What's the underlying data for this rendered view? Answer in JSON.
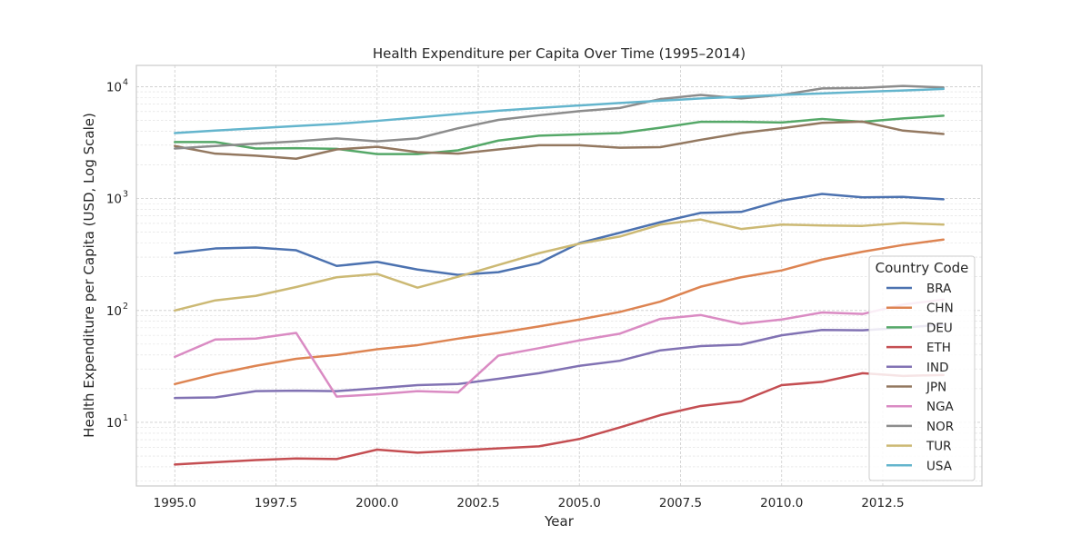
{
  "chart_data": {
    "type": "line",
    "title": "Health Expenditure per Capita Over Time (1995–2014)",
    "xlabel": "Year",
    "ylabel": "Health Expenditure per Capita (USD, Log Scale)",
    "x_scale": "linear",
    "y_scale": "log",
    "xlim": [
      1994.05,
      2014.95
    ],
    "ylim": [
      2.7,
      15500
    ],
    "x_ticks": [
      1995.0,
      1997.5,
      2000.0,
      2002.5,
      2005.0,
      2007.5,
      2010.0,
      2012.5
    ],
    "x_tick_labels": [
      "1995.0",
      "1997.5",
      "2000.0",
      "2002.5",
      "2005.0",
      "2007.5",
      "2010.0",
      "2012.5"
    ],
    "y_ticks": [
      10,
      100,
      1000,
      10000
    ],
    "y_tick_labels": [
      {
        "base": "10",
        "exp": "1"
      },
      {
        "base": "10",
        "exp": "2"
      },
      {
        "base": "10",
        "exp": "3"
      },
      {
        "base": "10",
        "exp": "4"
      }
    ],
    "grid": true,
    "legend": {
      "title": "Country Code",
      "position": "right"
    },
    "x": [
      1995,
      1996,
      1997,
      1998,
      1999,
      2000,
      2001,
      2002,
      2003,
      2004,
      2005,
      2006,
      2007,
      2008,
      2009,
      2010,
      2011,
      2012,
      2013,
      2014
    ],
    "series": [
      {
        "name": "BRA",
        "color": "#4c72b0",
        "values": [
          325,
          358,
          365,
          345,
          250,
          272,
          232,
          208,
          220,
          265,
          400,
          495,
          615,
          745,
          760,
          960,
          1100,
          1025,
          1035,
          985
        ]
      },
      {
        "name": "CHN",
        "color": "#dd8452",
        "values": [
          22,
          27,
          32,
          37,
          40,
          45,
          49,
          56,
          63,
          72,
          83,
          97,
          120,
          163,
          198,
          228,
          285,
          335,
          385,
          430
        ]
      },
      {
        "name": "DEU",
        "color": "#55a868",
        "values": [
          3200,
          3200,
          2800,
          2820,
          2780,
          2500,
          2500,
          2700,
          3300,
          3650,
          3750,
          3850,
          4300,
          4850,
          4850,
          4780,
          5150,
          4850,
          5200,
          5500
        ]
      },
      {
        "name": "ETH",
        "color": "#c44e52",
        "values": [
          4.2,
          4.4,
          4.6,
          4.75,
          4.7,
          5.7,
          5.35,
          5.6,
          5.85,
          6.1,
          7.1,
          9.0,
          11.6,
          14.0,
          15.4,
          21.5,
          23.0,
          27.5,
          26.0,
          26.5
        ]
      },
      {
        "name": "IND",
        "color": "#8172b3",
        "values": [
          16.5,
          16.7,
          19.0,
          19.2,
          19.0,
          20.2,
          21.5,
          22.0,
          24.5,
          27.5,
          32.0,
          35.5,
          44.0,
          48.0,
          49.5,
          60.0,
          67.0,
          66.5,
          70.0,
          75.0
        ]
      },
      {
        "name": "JPN",
        "color": "#937860",
        "values": [
          2950,
          2520,
          2420,
          2270,
          2750,
          2900,
          2600,
          2520,
          2750,
          3000,
          3000,
          2850,
          2880,
          3350,
          3850,
          4250,
          4750,
          4870,
          4050,
          3780
        ]
      },
      {
        "name": "NGA",
        "color": "#da8bc3",
        "values": [
          38.5,
          55.0,
          56.0,
          63.0,
          17.0,
          17.8,
          19.0,
          18.5,
          39.5,
          46.0,
          54.0,
          62.0,
          84.0,
          91.0,
          76.0,
          83.0,
          96.0,
          93.0,
          113.0,
          125.0
        ]
      },
      {
        "name": "NOR",
        "color": "#8c8c8c",
        "values": [
          2800,
          2950,
          3100,
          3250,
          3450,
          3250,
          3450,
          4250,
          5050,
          5550,
          6050,
          6450,
          7750,
          8450,
          7850,
          8450,
          9650,
          9750,
          10150,
          9850
        ]
      },
      {
        "name": "TUR",
        "color": "#ccb974",
        "values": [
          100,
          123,
          135,
          162,
          198,
          212,
          160,
          200,
          255,
          325,
          395,
          458,
          585,
          650,
          535,
          585,
          575,
          570,
          605,
          585
        ]
      },
      {
        "name": "USA",
        "color": "#64b5cd",
        "values": [
          3850,
          4050,
          4250,
          4450,
          4650,
          4950,
          5300,
          5700,
          6100,
          6450,
          6800,
          7150,
          7500,
          7850,
          8150,
          8450,
          8700,
          9000,
          9250,
          9550
        ]
      }
    ]
  }
}
